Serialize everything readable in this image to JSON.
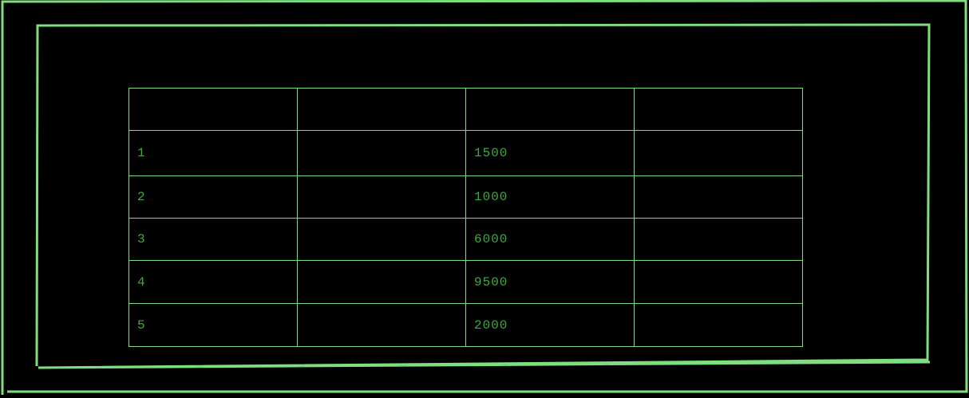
{
  "colors": {
    "background": "#000000",
    "frame_line": "#7fdf7f",
    "grid_line": "#7fd97f",
    "cell_text": "#3fa83f"
  },
  "table": {
    "header": [
      "",
      "",
      "",
      ""
    ],
    "rows": [
      {
        "id": "1",
        "col2": "",
        "amount": "1500",
        "col4": ""
      },
      {
        "id": "2",
        "col2": "",
        "amount": "1000",
        "col4": ""
      },
      {
        "id": "3",
        "col2": "",
        "amount": "6000",
        "col4": ""
      },
      {
        "id": "4",
        "col2": "",
        "amount": "9500",
        "col4": ""
      },
      {
        "id": "5",
        "col2": "",
        "amount": "2000",
        "col4": ""
      }
    ]
  }
}
